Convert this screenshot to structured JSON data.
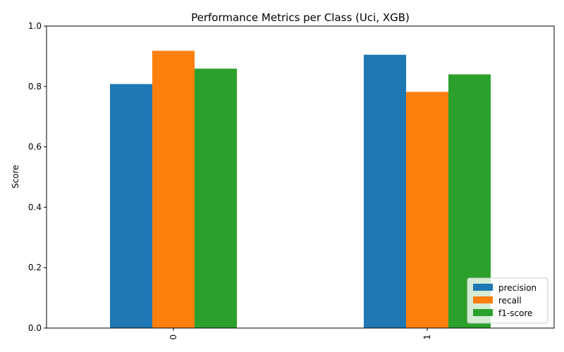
{
  "chart_data": {
    "type": "bar",
    "title": "Performance Metrics per Class (Uci, XGB)",
    "xlabel": "",
    "ylabel": "Score",
    "ylim": [
      0,
      1
    ],
    "yticks": [
      "0.0",
      "0.2",
      "0.4",
      "0.6",
      "0.8",
      "1.0"
    ],
    "categories": [
      "0",
      "1"
    ],
    "series": [
      {
        "name": "precision",
        "values": [
          0.808,
          0.905
        ],
        "color": "#1f77b4"
      },
      {
        "name": "recall",
        "values": [
          0.918,
          0.782
        ],
        "color": "#ff7f0e"
      },
      {
        "name": "f1-score",
        "values": [
          0.859,
          0.84
        ],
        "color": "#2ca02c"
      }
    ],
    "legend": "lower-right",
    "grid": false
  }
}
